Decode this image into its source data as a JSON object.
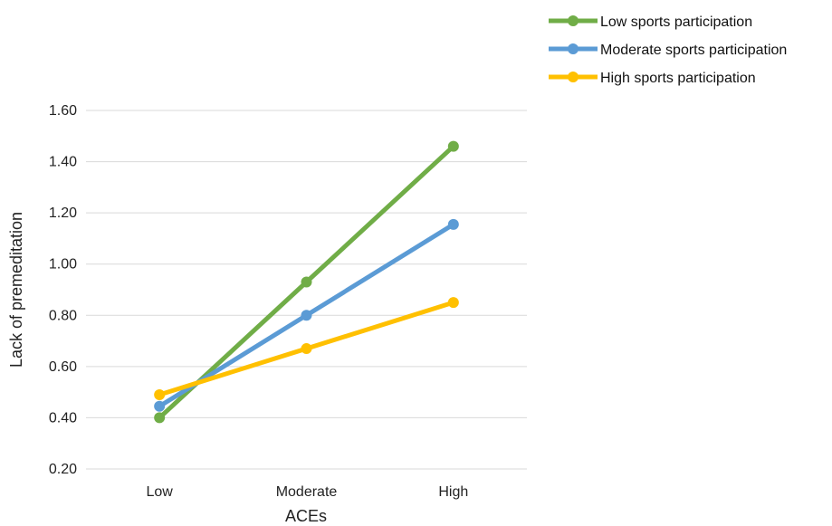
{
  "chart_data": {
    "type": "line",
    "categories": [
      "Low",
      "Moderate",
      "High"
    ],
    "series": [
      {
        "name": "Low sports participation",
        "color": "#70ad47",
        "values": [
          0.4,
          0.93,
          1.46
        ]
      },
      {
        "name": "Moderate sports participation",
        "color": "#5b9bd5",
        "values": [
          0.445,
          0.8,
          1.155
        ]
      },
      {
        "name": "High sports participation",
        "color": "#ffc000",
        "values": [
          0.49,
          0.67,
          0.85
        ]
      }
    ],
    "xlabel": "ACEs",
    "ylabel": "Lack of premeditation",
    "ylim": [
      0.2,
      1.6
    ],
    "yticks": [
      "0.20",
      "0.40",
      "0.60",
      "0.80",
      "1.00",
      "1.20",
      "1.40",
      "1.60"
    ],
    "grid": true,
    "legend": "top-right"
  }
}
